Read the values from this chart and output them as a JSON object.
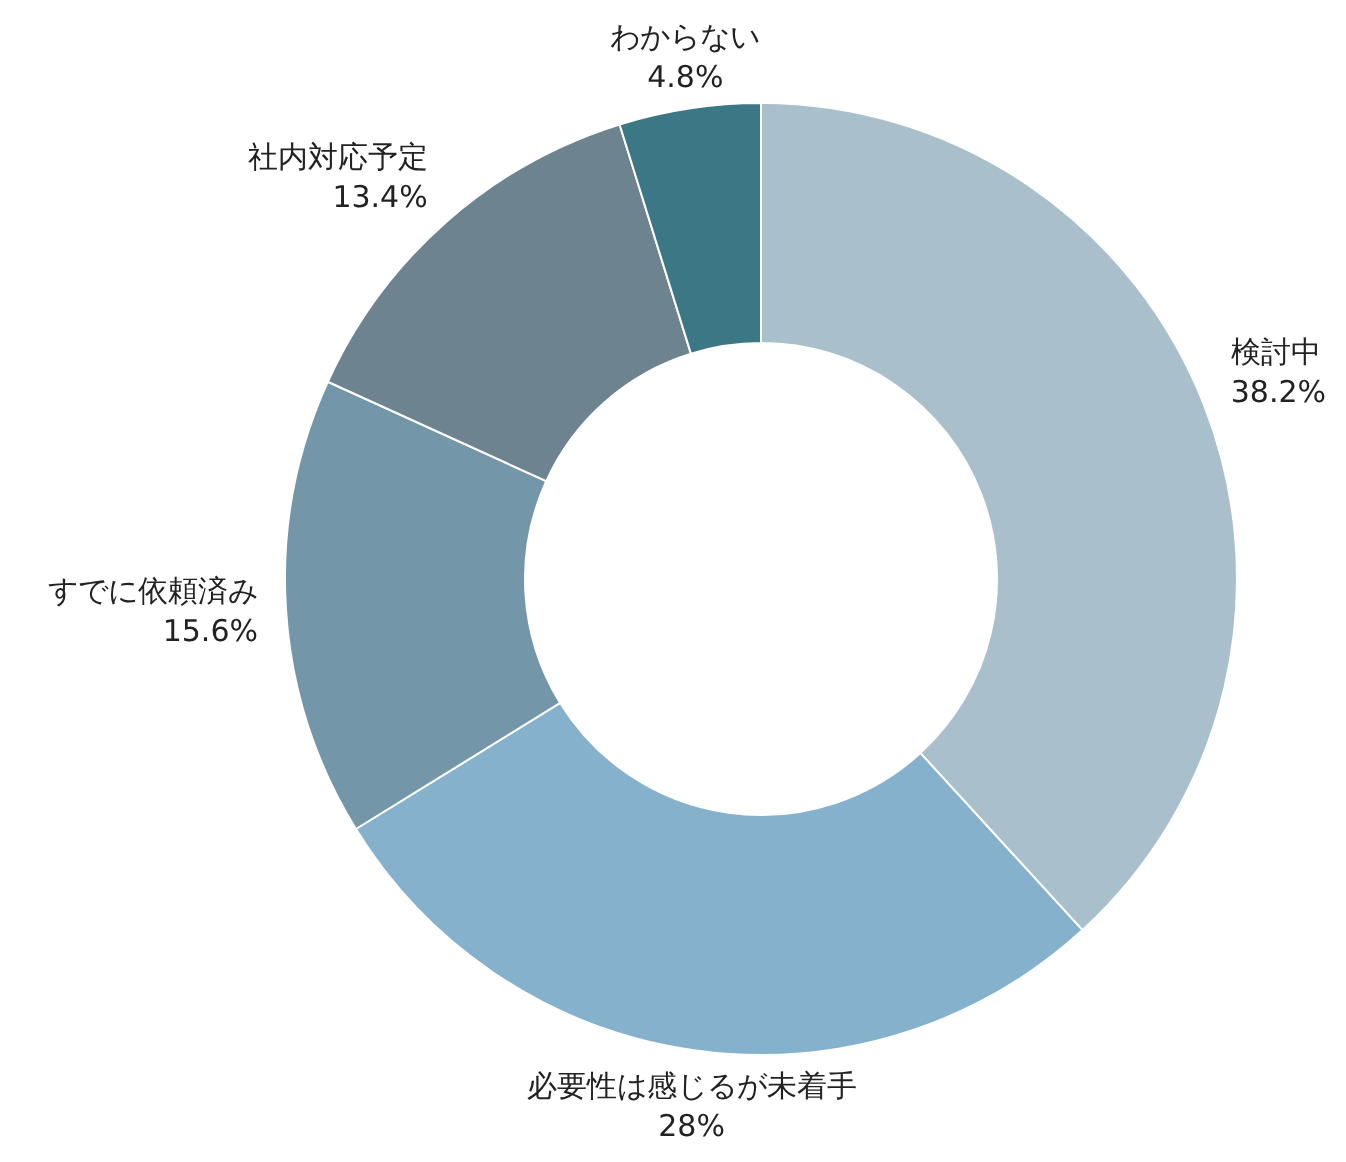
{
  "chart_data": {
    "type": "donut",
    "categories": [
      "検討中",
      "必要性は感じるが未着手",
      "すでに依頼済み",
      "社内対応予定",
      "わからない"
    ],
    "values": [
      38.2,
      28,
      15.6,
      13.4,
      4.8
    ],
    "value_labels": [
      "38.2%",
      "28%",
      "15.6%",
      "13.4%",
      "4.8%"
    ],
    "colors": [
      "#a9bfcc",
      "#85b1cc",
      "#7397a8",
      "#6e8390",
      "#3b7785"
    ]
  }
}
